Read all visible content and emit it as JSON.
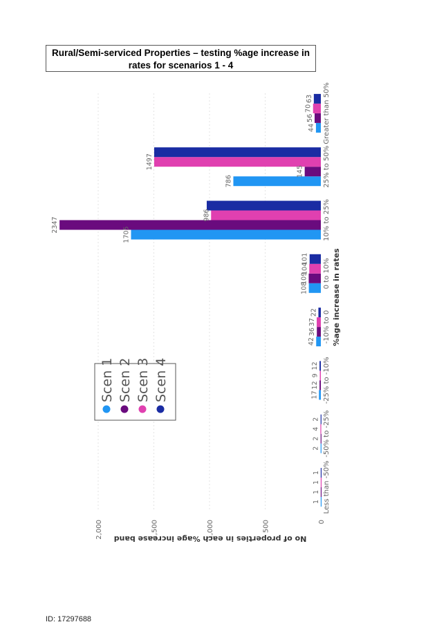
{
  "title": "Rural/Semi-serviced Properties – testing %age increase in rates for scenarios 1 - 4",
  "footer": "ID: 17297688",
  "chart_data": {
    "type": "bar",
    "orientation": "vertical-rotated",
    "title": "Rural/Semi-serviced Properties – testing %age increase in rates for scenarios 1 - 4",
    "xlabel": "%age increase in rates",
    "ylabel": "No of properties in each %age increase band",
    "categories": [
      "Less than -50%",
      "-50% to -25%",
      "-25% to -10%",
      "-10% to 0",
      "0 to 10%",
      "10% to 25%",
      "25% to 50%",
      "Greater than 50%"
    ],
    "yticks": [
      "0",
      "500",
      "1,000",
      "1,500",
      "2,000"
    ],
    "ylim": [
      0,
      2400
    ],
    "grid": true,
    "legend_position": "left",
    "series": [
      {
        "name": "Scen 1",
        "color": "#2196F3",
        "values": [
          1,
          2,
          17,
          42,
          108,
          1705,
          786,
          44
        ]
      },
      {
        "name": "Scen 2",
        "color": "#6A0B7E",
        "values": [
          1,
          2,
          12,
          36,
          109,
          2347,
          145,
          56
        ]
      },
      {
        "name": "Scen 3",
        "color": "#E040B0",
        "values": [
          1,
          4,
          9,
          37,
          104,
          986,
          1497,
          70
        ]
      },
      {
        "name": "Scen 4",
        "color": "#1A2CA3",
        "values": [
          1,
          2,
          12,
          22,
          101,
          1025,
          1497,
          63
        ]
      }
    ],
    "value_labels": [
      [
        "1",
        "2",
        "17",
        "42",
        "108",
        "1705",
        "786",
        "44"
      ],
      [
        "1",
        "2",
        "12",
        "36",
        "109",
        "2347",
        "145",
        "56"
      ],
      [
        "1",
        "4",
        "9",
        "37",
        "104",
        "986",
        "1497",
        "70"
      ],
      [
        "1",
        "2",
        "12",
        "22",
        "101",
        "",
        "",
        "63"
      ]
    ]
  }
}
